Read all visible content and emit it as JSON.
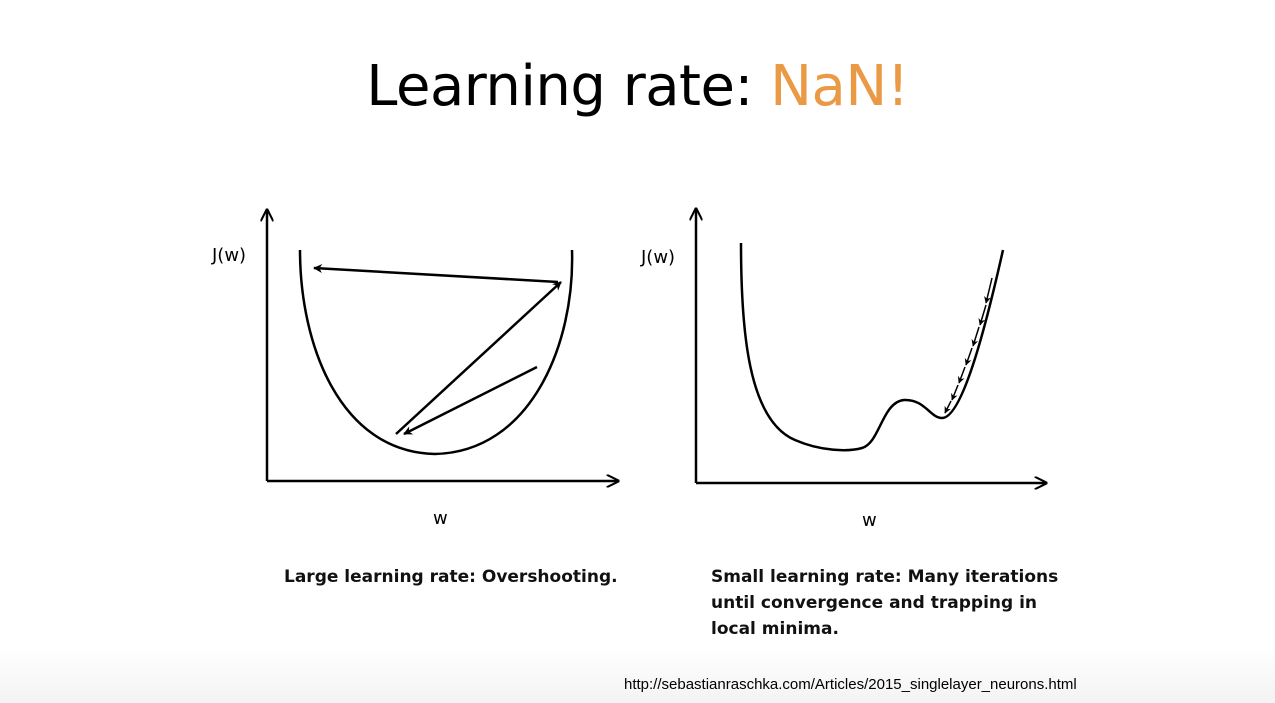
{
  "title": {
    "prefix": "Learning rate: ",
    "accent": "NaN!",
    "accent_color": "#ea9a45"
  },
  "left_diagram": {
    "y_label": "J(w)",
    "x_label": "w",
    "caption": "Large learning rate: Overshooting."
  },
  "right_diagram": {
    "y_label": "J(w)",
    "x_label": "w",
    "caption": "Small learning rate: Many iterations until convergence and trapping in local minima."
  },
  "source_url": "http://sebastianraschka.com/Articles/2015_singlelayer_neurons.html"
}
